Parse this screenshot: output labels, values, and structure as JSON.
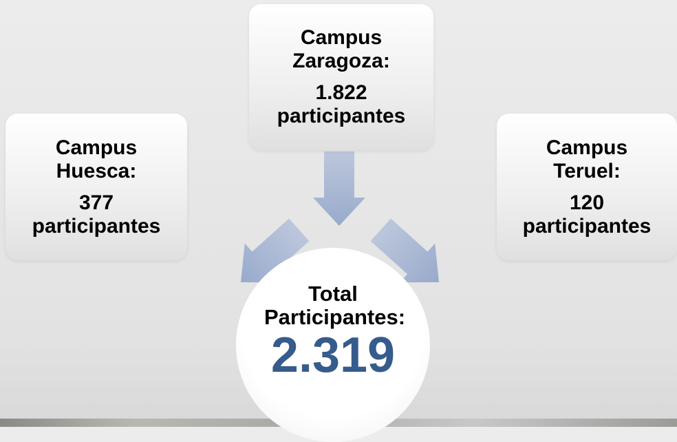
{
  "nodes": [
    {
      "title": "Campus Huesca:",
      "value": "377 participantes"
    },
    {
      "title": "Campus Zaragoza:",
      "value": "1.822 participantes"
    },
    {
      "title": "Campus Teruel:",
      "value": "120 participantes"
    }
  ],
  "total": {
    "label": "Total Participantes:",
    "value": "2.319"
  }
}
